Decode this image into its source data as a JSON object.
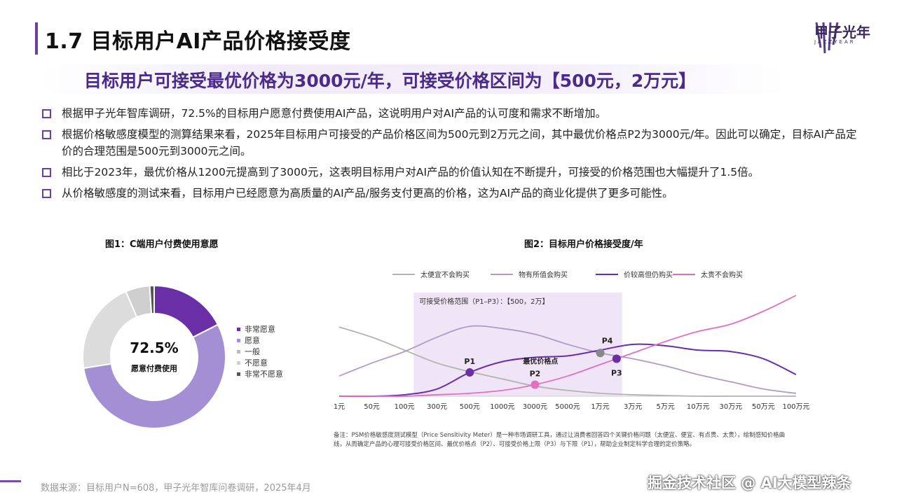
{
  "header": {
    "title": "1.7 目标用户AI产品价格接受度",
    "logo_cn": "甲子光年",
    "logo_en": "JAZZYEAR"
  },
  "subtitle": "目标用户可接受最优价格为3000元/年，可接受价格区间为【500元，2万元】",
  "bullets": [
    "根据甲子光年智库调研，72.5%的目标用户愿意付费使用AI产品，这说明用户对AI产品的认可度和需求不断增加。",
    "根据价格敏感度模型的测算结果来看，2025年目标用户可接受的产品价格区间为500元到2万元之间，其中最优价格点P2为3000元/年。因此可以确定，目标AI产品定价的合理范围是500元到3000元之间。",
    "相比于2023年，最优价格从1200元提高到了3000元，这表明目标用户对AI产品的价值认知在不断提升，可接受的价格范围也大幅提升了1.5倍。",
    "从价格敏感度的测试来看，目标用户已经愿意为高质量的AI产品/服务支付更高的价格，这为AI产品的商业化提供了更多可能性。"
  ],
  "chart_data": [
    {
      "type": "pie",
      "title": "图1：C端用户付费使用意愿",
      "center_value": "72.5%",
      "center_label": "愿意付费使用",
      "labels": [
        "非常愿意",
        "愿意",
        "一般",
        "不愿意",
        "非常不愿意"
      ],
      "values": [
        17.5,
        55.0,
        21.0,
        5.5,
        1.0
      ],
      "colors": [
        "#6a2fa6",
        "#a58fd4",
        "#dcdcdc",
        "#cfcfcf",
        "#555555"
      ]
    },
    {
      "type": "line",
      "title": "图2：目标用户价格接受度/年",
      "categories": [
        "1元",
        "50元",
        "100元",
        "300元",
        "500元",
        "1000元",
        "3000元",
        "5000元",
        "1万元",
        "3万元",
        "5万元",
        "10万元",
        "30万元",
        "50万元",
        "100万元"
      ],
      "series": [
        {
          "name": "太便宜不会购买",
          "color": "#b3b3b3",
          "values": [
            96,
            82,
            64,
            46,
            34,
            24,
            14,
            8,
            4,
            2,
            1,
            0,
            0,
            0,
            0
          ]
        },
        {
          "name": "物有所值会购买",
          "color": "#b09ac9",
          "values": [
            28,
            46,
            62,
            82,
            97,
            94,
            86,
            72,
            60,
            52,
            42,
            30,
            20,
            10,
            4
          ]
        },
        {
          "name": "价较高但仍购买",
          "color": "#6a2fa6",
          "values": [
            0,
            0,
            2,
            10,
            33,
            48,
            54,
            56,
            64,
            72,
            70,
            64,
            62,
            52,
            30
          ]
        },
        {
          "name": "太贵不会购买",
          "color": "#e070c0",
          "values": [
            0,
            0,
            0,
            2,
            4,
            8,
            16,
            28,
            44,
            60,
            76,
            90,
            100,
            118,
            140
          ]
        }
      ],
      "range_label": "可接受价格范围（P1–P3）：【500，2万】",
      "points": [
        {
          "label": "P1",
          "color": "#6a2fa6",
          "x": 4.0,
          "y": 33
        },
        {
          "label": "P2",
          "color": "#e070c0",
          "x": 6.0,
          "y": 16
        },
        {
          "label": "P3",
          "color": "#6a2fa6",
          "x": 8.5,
          "y": 52
        },
        {
          "label": "P4",
          "color": "#888888",
          "x": 8.0,
          "y": 60
        }
      ],
      "optimal_label": "最优价格点"
    }
  ],
  "note": "备注：PSM价格敏感度测试模型（Price Sensitivity Meter）是一种市场调研工具，通过让消费者回答四个关键价格问题（太便宜、便宜、有点贵、太贵），绘制感知价格曲线，从而确定产品的心理可接受价格区间、最优价格点（P2）、可接受价格上限（P3）与下限（P1），帮助企业制定科学合理的定价策略。",
  "source": "数据来源：目标用户N=608，甲子光年智库问卷调研，2025年4月",
  "watermark": "掘金技术社区 @ AI大模型辣条"
}
